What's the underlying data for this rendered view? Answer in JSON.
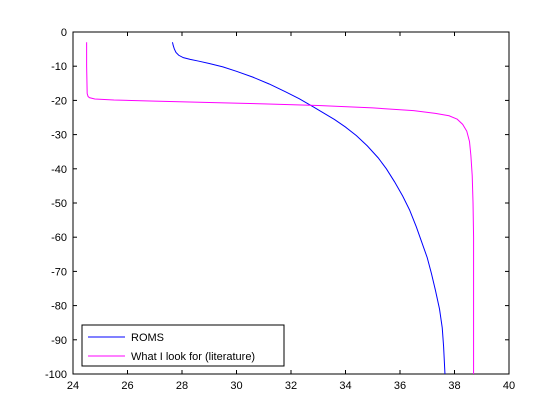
{
  "chart_data": {
    "type": "line",
    "title": "",
    "xlabel": "",
    "ylabel": "",
    "xlim": [
      24,
      40
    ],
    "ylim": [
      -100,
      0
    ],
    "x_ticks": [
      24,
      26,
      28,
      30,
      32,
      34,
      36,
      38,
      40
    ],
    "y_ticks": [
      0,
      -10,
      -20,
      -30,
      -40,
      -50,
      -60,
      -70,
      -80,
      -90,
      -100
    ],
    "x_tick_labels": [
      "24",
      "26",
      "28",
      "30",
      "32",
      "34",
      "36",
      "38",
      "40"
    ],
    "y_tick_labels": [
      "0",
      "-10",
      "-20",
      "-30",
      "-40",
      "-50",
      "-60",
      "-70",
      "-80",
      "-90",
      "-100"
    ],
    "grid": false,
    "legend_position": "bottom-left",
    "series": [
      {
        "name": "ROMS",
        "color": "#0000ff",
        "x": [
          27.65,
          27.68,
          27.72,
          27.78,
          27.88,
          28.05,
          28.3,
          28.6,
          29.0,
          29.5,
          30.0,
          30.6,
          31.2,
          31.8,
          32.3,
          32.8,
          33.2,
          33.6,
          34.0,
          34.4,
          34.8,
          35.2,
          35.5,
          35.8,
          36.1,
          36.35,
          36.6,
          36.8,
          37.0,
          37.15,
          37.3,
          37.45,
          37.55,
          37.6,
          37.65
        ],
        "y": [
          -3,
          -4,
          -5,
          -6,
          -6.8,
          -7.5,
          -8,
          -8.5,
          -9.2,
          -10.2,
          -11.5,
          -13.2,
          -15.2,
          -17.5,
          -19.5,
          -21.8,
          -23.7,
          -25.6,
          -27.8,
          -30.3,
          -33.3,
          -36.8,
          -40,
          -43.8,
          -48,
          -52,
          -57,
          -61.5,
          -66,
          -70.5,
          -75.5,
          -81,
          -86.5,
          -92,
          -100
        ]
      },
      {
        "name": "What I look for (literature)",
        "color": "#ff00ff",
        "x": [
          24.5,
          24.5,
          24.52,
          24.55,
          24.6,
          24.8,
          25.5,
          27,
          29,
          31,
          33,
          35,
          36.5,
          37.3,
          37.8,
          38.1,
          38.3,
          38.45,
          38.55,
          38.6,
          38.65,
          38.68,
          38.7,
          38.7,
          38.7
        ],
        "y": [
          -3,
          -10,
          -18,
          -18.8,
          -19.2,
          -19.6,
          -19.9,
          -20.2,
          -20.6,
          -21.0,
          -21.5,
          -22.2,
          -23.0,
          -23.8,
          -24.5,
          -25.5,
          -27,
          -29,
          -32,
          -36,
          -42,
          -50,
          -60,
          -80,
          -100
        ]
      }
    ]
  }
}
